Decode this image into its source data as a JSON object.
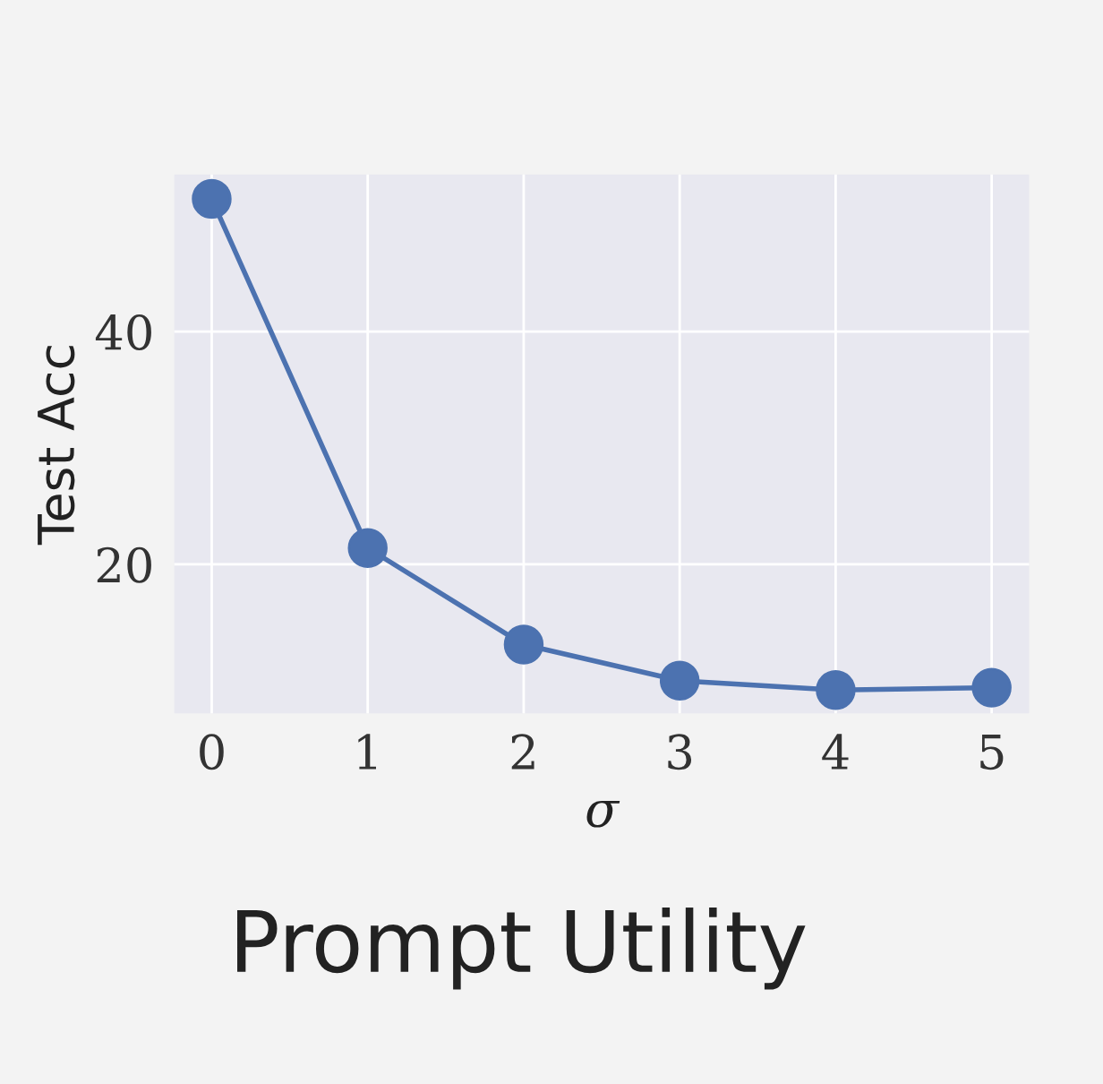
{
  "chart_data": {
    "type": "line",
    "title": "Prompt Utility",
    "xlabel": "σ",
    "ylabel": "Test Acc",
    "x": [
      0,
      1,
      2,
      3,
      4,
      5
    ],
    "series": [
      {
        "color": "#4c72b0",
        "values": [
          51.4,
          21.4,
          13.1,
          10.0,
          9.2,
          9.4
        ]
      }
    ],
    "xlim": [
      -0.24,
      5.24
    ],
    "ylim": [
      7.2,
      53.5
    ],
    "xticks": [
      0,
      1,
      2,
      3,
      4,
      5
    ],
    "yticks": [
      20,
      40
    ],
    "grid": true,
    "marker": "circle",
    "line_style": "solid"
  }
}
